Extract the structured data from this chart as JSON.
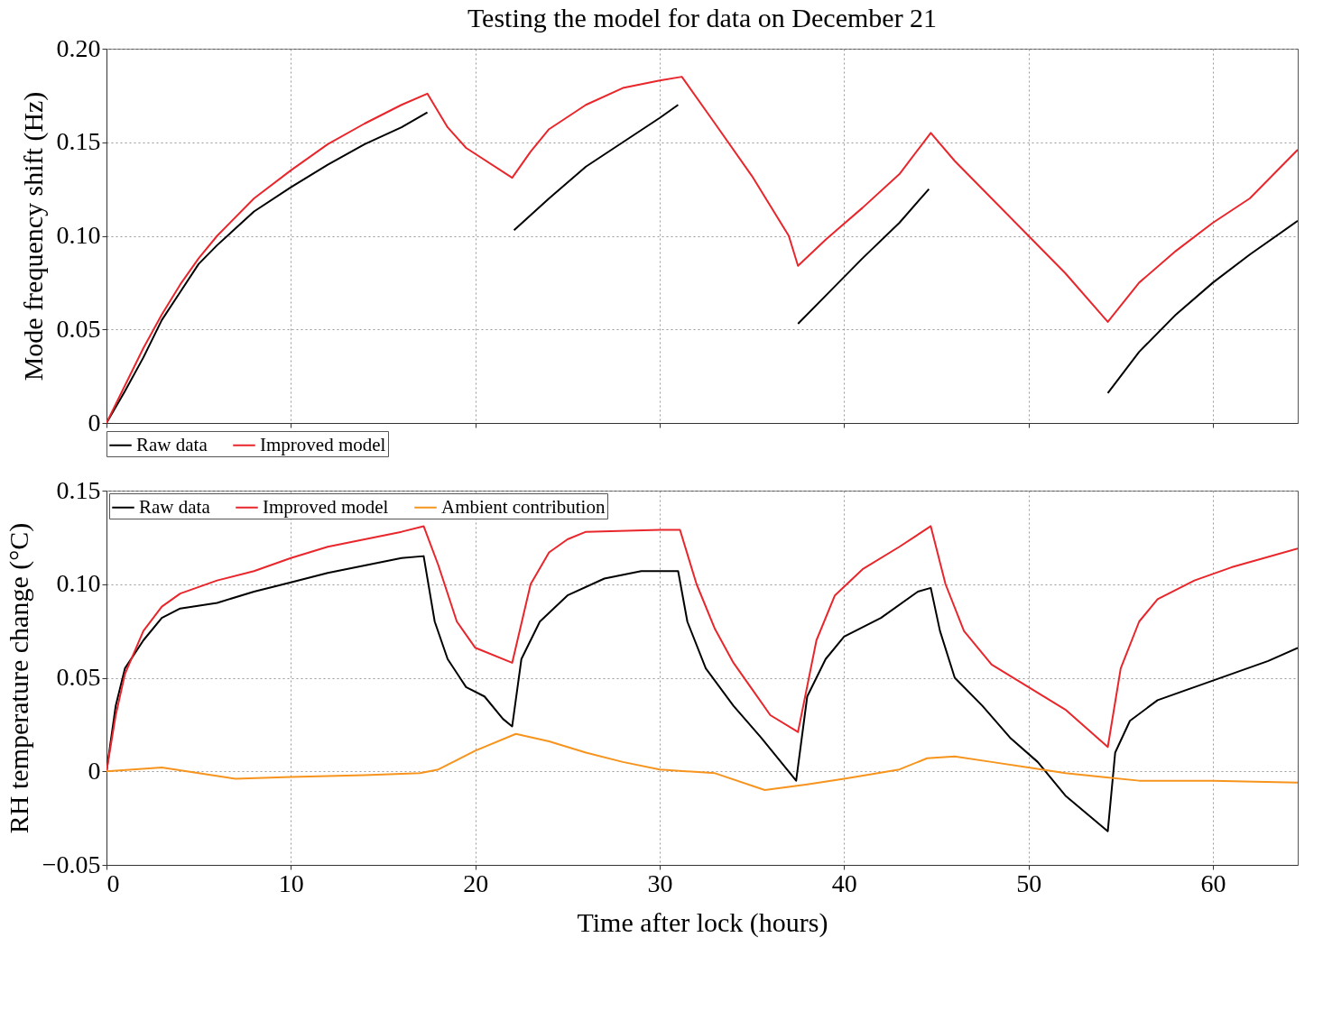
{
  "chart_data": [
    {
      "type": "line",
      "title": "Testing the model for data on December 21",
      "ylabel": "Mode frequency shift (Hz)",
      "xlim": [
        0,
        64.6
      ],
      "xticks": [
        0,
        10,
        20,
        30,
        40,
        50,
        60
      ],
      "ylim": [
        0,
        0.2
      ],
      "yticks": [
        0,
        {
          "value": 0.05,
          "label": "0.05"
        },
        {
          "value": 0.1,
          "label": "0.10"
        },
        {
          "value": 0.15,
          "label": "0.15"
        },
        {
          "value": 0.2,
          "label": "0.20"
        }
      ],
      "grid": true,
      "tick_labels": "y",
      "legend": "bottom",
      "series": [
        {
          "name": "Raw data",
          "color": "#000000",
          "x": [
            0,
            1,
            2,
            3,
            4,
            5,
            6,
            8,
            10,
            12,
            14,
            16,
            17.4,
            19,
            22.1,
            24,
            26,
            28,
            30,
            31,
            34,
            37.5,
            39,
            41,
            43,
            44.6,
            50,
            54.3,
            56,
            58,
            60,
            62,
            64.6
          ],
          "values": [
            0,
            0.017,
            0.035,
            0.055,
            0.07,
            0.085,
            0.095,
            0.113,
            0.126,
            0.138,
            0.149,
            0.158,
            0.166,
            null,
            0.103,
            0.12,
            0.137,
            0.15,
            0.163,
            0.17,
            null,
            0.053,
            0.068,
            0.088,
            0.107,
            0.125,
            null,
            0.016,
            0.038,
            0.058,
            0.075,
            0.09,
            0.108
          ]
        },
        {
          "name": "Improved model",
          "color": "#e8262b",
          "x": [
            0,
            1,
            2,
            3,
            4,
            5,
            6,
            8,
            10,
            12,
            14,
            16,
            17.4,
            18.5,
            19.5,
            22,
            23,
            24,
            26,
            28,
            30,
            31.2,
            33,
            35,
            37,
            37.5,
            39,
            41,
            43,
            44.7,
            46,
            48,
            50,
            52,
            54.3,
            56,
            58,
            60,
            62,
            64.6
          ],
          "values": [
            0,
            0.02,
            0.04,
            0.058,
            0.074,
            0.088,
            0.1,
            0.12,
            0.135,
            0.149,
            0.16,
            0.17,
            0.176,
            0.158,
            0.147,
            0.131,
            0.145,
            0.157,
            0.17,
            0.179,
            0.183,
            0.185,
            0.16,
            0.132,
            0.1,
            0.084,
            0.098,
            0.115,
            0.133,
            0.155,
            0.14,
            0.12,
            0.1,
            0.08,
            0.054,
            0.075,
            0.092,
            0.107,
            0.12,
            0.146
          ]
        }
      ]
    },
    {
      "type": "line",
      "xlabel": "Time after lock (hours)",
      "ylabel": "RH temperature change (°C)",
      "xlim": [
        0,
        64.6
      ],
      "xticks": [
        0,
        10,
        20,
        30,
        40,
        50,
        60
      ],
      "ylim": [
        -0.05,
        0.15
      ],
      "yticks": [
        {
          "value": -0.05,
          "label": "−0.05"
        },
        0,
        {
          "value": 0.05,
          "label": "0.05"
        },
        {
          "value": 0.1,
          "label": "0.10"
        },
        {
          "value": 0.15,
          "label": "0.15"
        }
      ],
      "grid": true,
      "legend": "top left",
      "series": [
        {
          "name": "Raw data",
          "color": "#000000",
          "x": [
            0,
            0.5,
            1,
            2,
            3,
            4,
            6,
            8,
            10,
            12,
            14,
            16,
            17.2,
            17.8,
            18.5,
            19.5,
            20.5,
            21.5,
            22,
            22.5,
            23.5,
            25,
            27,
            29,
            31,
            31.5,
            32.5,
            34,
            35.5,
            37.4,
            38,
            39,
            40,
            42,
            44,
            44.7,
            45.2,
            46,
            47.5,
            49,
            50.5,
            52,
            54.3,
            54.7,
            55.5,
            57,
            59,
            61,
            63,
            64.6
          ],
          "values": [
            0,
            0.035,
            0.055,
            0.07,
            0.082,
            0.087,
            0.09,
            0.096,
            0.101,
            0.106,
            0.11,
            0.114,
            0.115,
            0.08,
            0.06,
            0.045,
            0.04,
            0.028,
            0.024,
            0.06,
            0.08,
            0.094,
            0.103,
            0.107,
            0.107,
            0.08,
            0.055,
            0.035,
            0.018,
            -0.005,
            0.04,
            0.06,
            0.072,
            0.082,
            0.096,
            0.098,
            0.075,
            0.05,
            0.035,
            0.018,
            0.005,
            -0.013,
            -0.032,
            0.01,
            0.027,
            0.038,
            0.045,
            0.052,
            0.059,
            0.066
          ]
        },
        {
          "name": "Improved model",
          "color": "#e8262b",
          "x": [
            0,
            0.5,
            1,
            2,
            3,
            4,
            6,
            8,
            10,
            12,
            14,
            16,
            17.2,
            18,
            19,
            20,
            22,
            23,
            24,
            25,
            26,
            30,
            31.1,
            32,
            33,
            34,
            35,
            36,
            37.5,
            38.5,
            39.5,
            41,
            43,
            44.7,
            45.5,
            46.5,
            48,
            50,
            52,
            54.3,
            55,
            56,
            57,
            59,
            61,
            64.6
          ],
          "values": [
            0,
            0.03,
            0.052,
            0.075,
            0.088,
            0.095,
            0.102,
            0.107,
            0.114,
            0.12,
            0.124,
            0.128,
            0.131,
            0.11,
            0.08,
            0.066,
            0.058,
            0.1,
            0.117,
            0.124,
            0.128,
            0.129,
            0.129,
            0.1,
            0.076,
            0.058,
            0.044,
            0.03,
            0.021,
            0.07,
            0.094,
            0.108,
            0.12,
            0.131,
            0.1,
            0.075,
            0.057,
            0.045,
            0.033,
            0.013,
            0.055,
            0.08,
            0.092,
            0.102,
            0.109,
            0.119
          ]
        },
        {
          "name": "Ambient contribution",
          "color": "#f7941d",
          "x": [
            0,
            3,
            5,
            7,
            10,
            14,
            17,
            18,
            20,
            22.2,
            24,
            26,
            28,
            30,
            33,
            35.7,
            38,
            40,
            43,
            44.5,
            46,
            48,
            50,
            52,
            54,
            56,
            60,
            64.6
          ],
          "values": [
            0,
            0.002,
            -0.001,
            -0.004,
            -0.003,
            -0.002,
            -0.001,
            0.001,
            0.011,
            0.02,
            0.016,
            0.01,
            0.005,
            0.001,
            -0.001,
            -0.01,
            -0.007,
            -0.004,
            0.001,
            0.007,
            0.008,
            0.005,
            0.002,
            -0.001,
            -0.003,
            -0.005,
            -0.005,
            -0.006
          ]
        }
      ]
    }
  ]
}
